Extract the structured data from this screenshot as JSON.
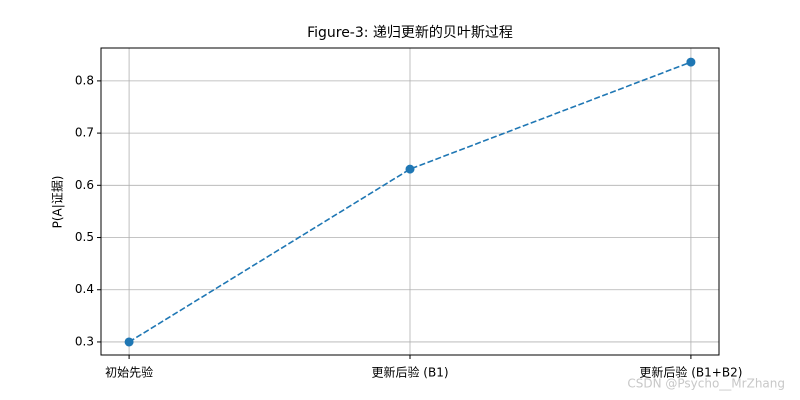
{
  "chart_data": {
    "type": "line",
    "title": "Figure-3: 递归更新的贝叶斯过程",
    "y_label": "P(A|证据)",
    "categories": [
      "初始先验",
      "更新后验 (B1)",
      "更新后验 (B1+B2)"
    ],
    "series": [
      {
        "name": "P(A|证据)",
        "color": "#1f77b4",
        "values": [
          0.3,
          0.631,
          0.836
        ]
      }
    ],
    "ylim": [
      0.275,
      0.863
    ],
    "yticks": [
      0.3,
      0.4,
      0.5,
      0.6,
      0.7,
      0.8
    ],
    "grid": true,
    "line_style": "dashed",
    "marker": "circle",
    "watermark": "CSDN @Psycho__MrZhang"
  }
}
